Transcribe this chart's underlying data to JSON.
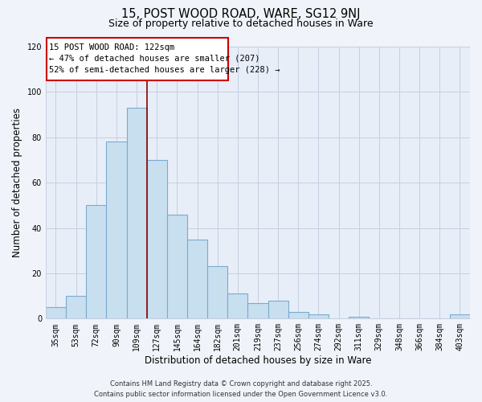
{
  "title": "15, POST WOOD ROAD, WARE, SG12 9NJ",
  "subtitle": "Size of property relative to detached houses in Ware",
  "xlabel": "Distribution of detached houses by size in Ware",
  "ylabel": "Number of detached properties",
  "bar_labels": [
    "35sqm",
    "53sqm",
    "72sqm",
    "90sqm",
    "109sqm",
    "127sqm",
    "145sqm",
    "164sqm",
    "182sqm",
    "201sqm",
    "219sqm",
    "237sqm",
    "256sqm",
    "274sqm",
    "292sqm",
    "311sqm",
    "329sqm",
    "348sqm",
    "366sqm",
    "384sqm",
    "403sqm"
  ],
  "bar_values": [
    5,
    10,
    50,
    78,
    93,
    70,
    46,
    35,
    23,
    11,
    7,
    8,
    3,
    2,
    0,
    1,
    0,
    0,
    0,
    0,
    2
  ],
  "bar_color": "#c8dff0",
  "bar_edge_color": "#7aabcf",
  "vline_x": 4.5,
  "vline_color": "#880000",
  "ylim": [
    0,
    120
  ],
  "yticks": [
    0,
    20,
    40,
    60,
    80,
    100,
    120
  ],
  "ann_line1": "15 POST WOOD ROAD: 122sqm",
  "ann_line2": "← 47% of detached houses are smaller (207)",
  "ann_line3": "52% of semi-detached houses are larger (228) →",
  "footer_text": "Contains HM Land Registry data © Crown copyright and database right 2025.\nContains public sector information licensed under the Open Government Licence v3.0.",
  "background_color": "#f0f4fa",
  "plot_background_color": "#e8eef8",
  "grid_color": "#c5cfe0"
}
